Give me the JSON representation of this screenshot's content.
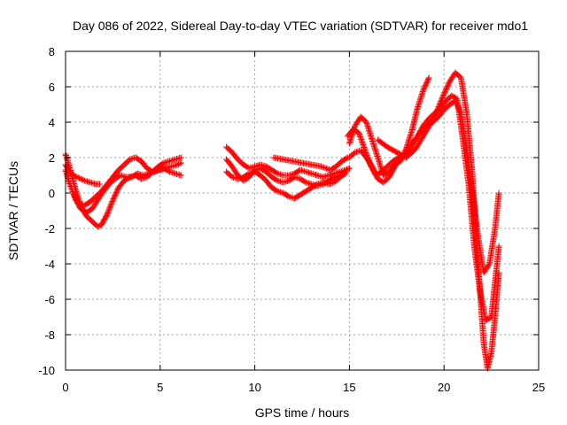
{
  "chart_data": {
    "type": "scatter",
    "title": "Day 086 of 2022, Sidereal Day-to-day VTEC variation (SDTVAR) for receiver mdo1",
    "xlabel": "GPS time / hours",
    "ylabel": "SDTVAR / TECUs",
    "xlim": [
      0,
      25
    ],
    "ylim": [
      -10,
      8
    ],
    "xticks": [
      0,
      5,
      10,
      15,
      20,
      25
    ],
    "yticks": [
      -10,
      -8,
      -6,
      -4,
      -2,
      0,
      2,
      4,
      6,
      8
    ],
    "x_tick_labels": [
      "0",
      "5",
      "10",
      "15",
      "20",
      "25"
    ],
    "y_tick_labels": [
      "-10",
      "-8",
      "-6",
      "-4",
      "-2",
      "0",
      "2",
      "4",
      "6",
      "8"
    ],
    "grid": true,
    "marker": "plus",
    "color": "#ff0000",
    "series": [
      {
        "x": [
          0.0,
          0.2,
          0.4,
          0.6,
          0.8,
          1.0,
          1.3,
          1.6,
          1.8
        ],
        "y": [
          1.6,
          1.2,
          1.0,
          0.9,
          0.8,
          0.7,
          0.6,
          0.5,
          0.5
        ]
      },
      {
        "x": [
          0.0,
          0.2,
          0.5,
          0.8,
          1.1,
          1.4,
          1.7,
          2.0,
          2.3,
          2.6,
          2.9,
          3.2,
          3.5,
          3.8,
          4.1,
          4.4,
          4.7,
          5.0,
          5.3,
          5.6,
          5.9,
          6.1
        ],
        "y": [
          1.3,
          0.6,
          -0.3,
          -0.9,
          -1.1,
          -0.9,
          -0.4,
          0.1,
          0.5,
          0.8,
          1.0,
          0.9,
          0.9,
          1.1,
          1.0,
          1.1,
          1.2,
          1.3,
          1.4,
          1.5,
          1.6,
          1.7
        ]
      },
      {
        "x": [
          0.0,
          0.2,
          0.5,
          0.8,
          1.1,
          1.4,
          1.7,
          1.9,
          2.2,
          2.5,
          2.8,
          3.1,
          3.4,
          3.7,
          4.0,
          4.3,
          4.6,
          4.9,
          5.2,
          5.5,
          5.8,
          6.1
        ],
        "y": [
          2.2,
          1.5,
          0.3,
          -0.7,
          -1.3,
          -1.6,
          -1.9,
          -1.8,
          -1.2,
          -0.4,
          0.3,
          0.7,
          0.9,
          1.0,
          0.8,
          0.9,
          1.2,
          1.5,
          1.7,
          1.8,
          1.9,
          2.0
        ]
      },
      {
        "x": [
          0.1,
          0.4,
          0.7,
          1.0,
          1.3,
          1.6,
          1.9,
          2.2,
          2.5,
          2.8,
          3.1,
          3.4,
          3.7,
          4.0,
          4.3,
          4.6,
          4.9,
          5.2,
          5.5,
          5.8,
          6.1
        ],
        "y": [
          0.9,
          0.0,
          -0.6,
          -0.7,
          -0.5,
          -0.2,
          0.1,
          0.5,
          0.9,
          1.3,
          1.6,
          1.9,
          2.0,
          1.8,
          1.4,
          1.2,
          1.3,
          1.4,
          1.2,
          1.1,
          1.0
        ]
      },
      {
        "x": [
          8.5,
          8.8,
          9.1,
          9.4,
          9.7,
          10.0,
          10.3,
          10.6,
          10.9,
          11.2,
          11.5,
          11.8,
          12.1,
          12.4,
          12.7,
          13.0,
          13.3,
          13.6,
          13.9,
          14.2,
          14.5,
          14.8,
          15.0
        ],
        "y": [
          2.6,
          2.3,
          1.9,
          1.6,
          1.4,
          1.5,
          1.6,
          1.5,
          1.3,
          1.1,
          1.0,
          1.0,
          1.1,
          1.3,
          1.2,
          1.1,
          1.0,
          0.9,
          1.0,
          1.1,
          1.2,
          1.3,
          1.4
        ]
      },
      {
        "x": [
          8.5,
          8.8,
          9.1,
          9.4,
          9.7,
          10.0,
          10.3,
          10.6,
          10.9,
          11.2,
          11.5,
          11.8,
          12.1,
          12.4,
          12.7,
          13.0,
          13.3,
          13.6,
          13.9,
          14.2,
          14.5,
          14.8
        ],
        "y": [
          1.9,
          1.5,
          1.0,
          0.7,
          0.9,
          1.3,
          1.4,
          1.2,
          0.9,
          0.7,
          0.6,
          0.7,
          0.9,
          0.8,
          0.6,
          0.5,
          0.4,
          0.5,
          0.7,
          0.9,
          1.0,
          1.2
        ]
      },
      {
        "x": [
          8.5,
          8.8,
          9.1,
          9.4,
          9.7,
          10.0,
          10.3,
          10.6,
          10.9,
          11.2,
          11.5,
          11.8,
          12.1,
          12.4,
          12.7,
          13.0,
          13.3,
          13.6,
          13.9,
          14.2,
          14.5,
          14.8
        ],
        "y": [
          1.2,
          0.9,
          0.8,
          0.9,
          1.1,
          1.2,
          1.0,
          0.7,
          0.3,
          0.1,
          0.0,
          -0.2,
          -0.3,
          -0.1,
          0.1,
          0.3,
          0.5,
          0.6,
          0.5,
          0.6,
          0.9,
          1.1
        ]
      },
      {
        "x": [
          11.0,
          11.5,
          12.0,
          12.5,
          13.0,
          13.5,
          14.0,
          14.3,
          14.6,
          14.9
        ],
        "y": [
          2.0,
          1.9,
          1.8,
          1.7,
          1.6,
          1.5,
          1.3,
          1.5,
          1.8,
          2.0
        ]
      },
      {
        "x": [
          15.0,
          15.3,
          15.6,
          15.9,
          16.2,
          16.5,
          16.8,
          17.1,
          17.4,
          17.7,
          18.0,
          18.3,
          18.6,
          18.9,
          19.2
        ],
        "y": [
          2.8,
          3.8,
          4.3,
          4.0,
          3.0,
          2.0,
          1.0,
          1.2,
          1.6,
          1.8,
          2.5,
          3.5,
          4.8,
          5.8,
          6.5
        ]
      },
      {
        "x": [
          14.9,
          15.2,
          15.5,
          15.8,
          16.1,
          16.4,
          16.7,
          17.0,
          17.3,
          17.6,
          17.9,
          18.2,
          18.5,
          18.8,
          19.1,
          19.4,
          19.7,
          20.0,
          20.3,
          20.6,
          20.9,
          21.2,
          21.5,
          21.8,
          22.1,
          22.4,
          22.7,
          22.9
        ],
        "y": [
          3.2,
          3.6,
          3.4,
          2.5,
          1.6,
          1.0,
          1.2,
          1.5,
          1.8,
          2.0,
          2.1,
          2.5,
          3.0,
          3.5,
          3.8,
          4.0,
          4.3,
          4.7,
          5.0,
          5.2,
          4.5,
          2.5,
          0.0,
          -2.5,
          -4.5,
          -4.0,
          -2.0,
          0.0
        ]
      },
      {
        "x": [
          15.0,
          15.3,
          15.6,
          15.9,
          16.2,
          16.5,
          16.8,
          17.1,
          17.4,
          17.7,
          18.0,
          18.3,
          18.6,
          18.9,
          19.2,
          19.5,
          19.8,
          20.1,
          20.4,
          20.7,
          21.0,
          21.3,
          21.6,
          21.9,
          22.2,
          22.5,
          22.7,
          22.9
        ],
        "y": [
          2.0,
          2.3,
          2.4,
          2.0,
          1.5,
          0.8,
          0.6,
          0.9,
          1.5,
          2.0,
          2.3,
          2.8,
          3.2,
          3.8,
          4.2,
          4.5,
          4.8,
          5.2,
          5.5,
          5.3,
          3.0,
          0.5,
          -3.0,
          -5.5,
          -7.2,
          -7.0,
          -5.0,
          -3.0
        ]
      },
      {
        "x": [
          16.5,
          17.0,
          17.5,
          18.0,
          18.5,
          19.0,
          19.5,
          20.0,
          20.3,
          20.6,
          20.9,
          21.2,
          21.5,
          21.8,
          22.1,
          22.3,
          22.5,
          22.7,
          22.9
        ],
        "y": [
          3.0,
          2.6,
          2.3,
          2.0,
          2.5,
          3.4,
          4.3,
          5.6,
          6.3,
          6.8,
          6.5,
          4.5,
          1.0,
          -4.0,
          -8.5,
          -9.9,
          -9.0,
          -7.0,
          -4.5
        ]
      }
    ]
  }
}
